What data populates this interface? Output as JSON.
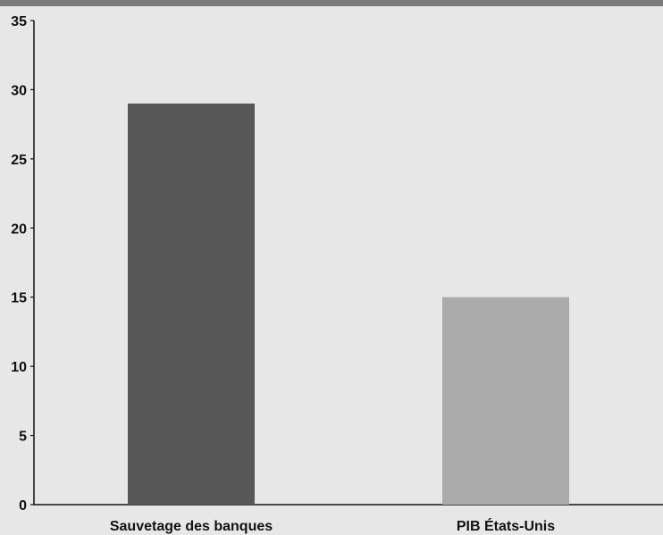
{
  "chart_data": {
    "type": "bar",
    "categories": [
      "Sauvetage des banques",
      "PIB États-Unis"
    ],
    "values": [
      29,
      15
    ],
    "colors": [
      "#575757",
      "#aaaaaa"
    ],
    "title": "",
    "xlabel": "",
    "ylabel": "",
    "ylim": [
      0,
      35
    ],
    "yticks": [
      0,
      5,
      10,
      15,
      20,
      25,
      30,
      35
    ],
    "grid": false
  },
  "style": {
    "background": "#e7e7e8",
    "header_bar": "#7a7a7a",
    "axis_color": "#111111"
  }
}
